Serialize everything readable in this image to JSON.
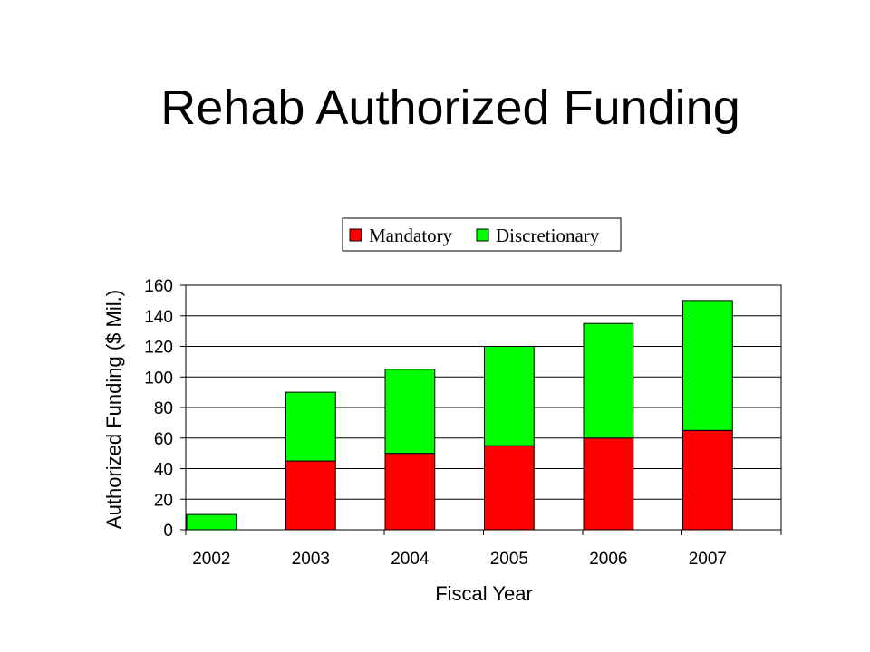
{
  "title": "Rehab Authorized Funding",
  "chart_data": {
    "type": "bar",
    "stacked": true,
    "categories": [
      "2002",
      "2003",
      "2004",
      "2005",
      "2006",
      "2007"
    ],
    "series": [
      {
        "name": "Mandatory",
        "color": "#ff0000",
        "values": [
          0,
          45,
          50,
          55,
          60,
          65
        ]
      },
      {
        "name": "Discretionary",
        "color": "#00ff00",
        "values": [
          10,
          45,
          55,
          65,
          75,
          85
        ]
      }
    ],
    "xlabel": "Fiscal Year",
    "ylabel": "Authorized Funding ($ Mil.)",
    "ylim": [
      0,
      160
    ],
    "yticks": [
      0,
      20,
      40,
      60,
      80,
      100,
      120,
      140,
      160
    ],
    "grid": true,
    "legend": "top"
  }
}
